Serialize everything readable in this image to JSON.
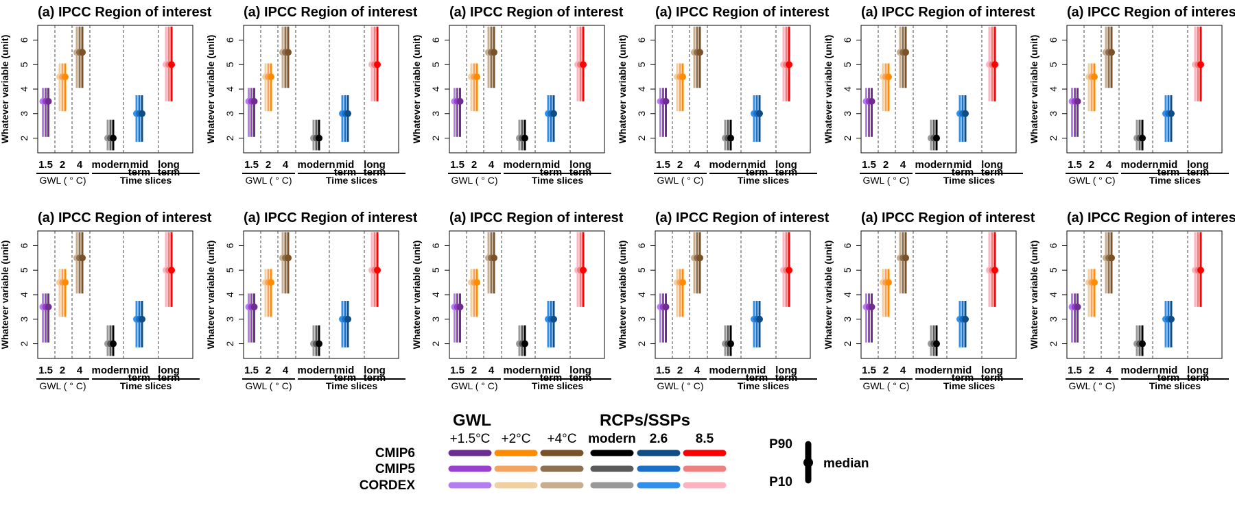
{
  "chart_data": {
    "type": "range",
    "panel_title": "(a) IPCC Region of interest",
    "ylabel": "Whatever variable (unit)",
    "ylim": [
      1.4,
      6.6
    ],
    "yticks": [
      2,
      3,
      4,
      5,
      6
    ],
    "grid": {
      "rows": 2,
      "cols": 6
    },
    "groups": [
      {
        "label": "1.5",
        "label2": ""
      },
      {
        "label": "2",
        "label2": ""
      },
      {
        "label": "4",
        "label2": ""
      },
      {
        "label": "modern",
        "label2": ""
      },
      {
        "label": "mid",
        "label2": "term"
      },
      {
        "label": "long",
        "label2": "term"
      }
    ],
    "group_axes": [
      {
        "label": "GWL ( ° C)",
        "groups": [
          0,
          2
        ]
      },
      {
        "label": "Time slices",
        "groups": [
          3,
          5
        ]
      }
    ],
    "ensembles": [
      "CMIP6",
      "CMIP5",
      "CORDEX"
    ],
    "series": [
      {
        "group": 0,
        "p10": 2.05,
        "median": 3.5,
        "p90": 4.05,
        "colors": [
          "#6d2d91",
          "#9b3fd0",
          "#b37ef0"
        ]
      },
      {
        "group": 1,
        "p10": 3.1,
        "median": 4.5,
        "p90": 5.05,
        "colors": [
          "#ff8c00",
          "#f4a460",
          "#f0cfa0"
        ]
      },
      {
        "group": 2,
        "p10": 4.05,
        "median": 5.5,
        "p90": 6.55,
        "colors": [
          "#7b5228",
          "#8c7050",
          "#c9ad8f"
        ]
      },
      {
        "group": 3,
        "p10": 1.5,
        "median": 2.0,
        "p90": 2.75,
        "colors": [
          "#000000",
          "#5a5a5a",
          "#999999"
        ]
      },
      {
        "group": 4,
        "p10": 1.85,
        "median": 3.0,
        "p90": 3.75,
        "colors": [
          "#0f4d86",
          "#1a70c8",
          "#3090ee"
        ]
      },
      {
        "group": 5,
        "p10": 3.5,
        "median": 5.0,
        "p90": 6.55,
        "colors": [
          "#ff0000",
          "#ee8080",
          "#ffb3c0"
        ]
      },
      {
        "group": 6,
        "p10": 1.85,
        "median": 3.0,
        "p90": 3.75,
        "colors": [
          "#0f4d86",
          "#1a70c8",
          "#3090ee"
        ]
      },
      {
        "group": 7,
        "p10": 3.5,
        "median": 5.0,
        "p90": 6.55,
        "colors": [
          "#ff0000",
          "#ee8080",
          "#ffb3c0"
        ]
      }
    ]
  },
  "legend": {
    "gwl_header": "GWL",
    "rcp_header": "RCPs/SSPs",
    "columns": [
      "+1.5°C",
      "+2°C",
      "+4°C",
      "modern",
      "2.6",
      "8.5"
    ],
    "rows": [
      "CMIP6",
      "CMIP5",
      "CORDEX"
    ],
    "colors": [
      [
        "#6d2d91",
        "#ff8c00",
        "#7b5228",
        "#000000",
        "#0f4d86",
        "#ff0000"
      ],
      [
        "#9b3fd0",
        "#f4a460",
        "#8c7050",
        "#5a5a5a",
        "#1a70c8",
        "#ee8080"
      ],
      [
        "#b37ef0",
        "#f0cfa0",
        "#c9ad8f",
        "#999999",
        "#3090ee",
        "#ffb3c0"
      ]
    ],
    "p90": "P90",
    "p10": "P10",
    "median": "median"
  }
}
